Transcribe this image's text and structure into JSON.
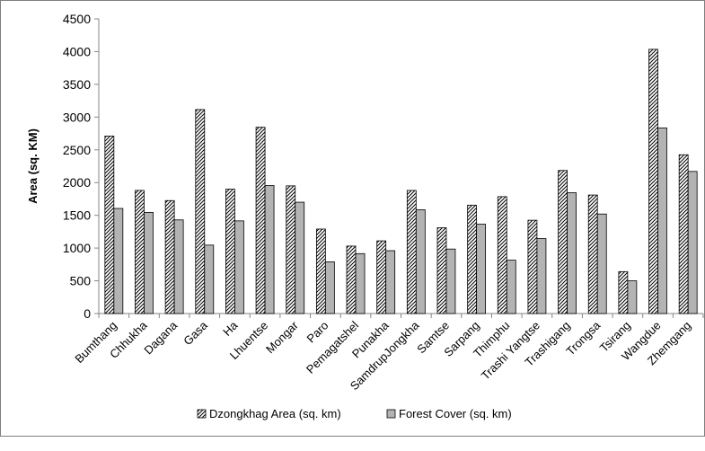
{
  "chart_data": {
    "type": "bar",
    "title": "",
    "xlabel": "",
    "ylabel": "Area (sq. KM)",
    "ylim": [
      0,
      4500
    ],
    "yticks": [
      0,
      500,
      1000,
      1500,
      2000,
      2500,
      3000,
      3500,
      4000,
      4500
    ],
    "grid": false,
    "legend_position": "bottom",
    "categories": [
      "Bumthang",
      "Chhukha",
      "Dagana",
      "Gasa",
      "Ha",
      "Lhuentse",
      "Mongar",
      "Paro",
      "Pemagatshel",
      "Punakha",
      "SamdrupJongkha",
      "Samtse",
      "Sarpang",
      "Thimphu",
      "Trashi Yangtse",
      "Trashigang",
      "Trongsa",
      "Tsirang",
      "Wangdue",
      "Zhemgang"
    ],
    "series": [
      {
        "name": "Dzongkhag Area (sq. km)",
        "pattern": "diagonal-hatch",
        "values": [
          2710,
          1880,
          1725,
          3115,
          1900,
          2845,
          1950,
          1290,
          1030,
          1110,
          1880,
          1310,
          1655,
          1785,
          1425,
          2185,
          1810,
          640,
          4035,
          2425
        ]
      },
      {
        "name": "Forest Cover (sq. km)",
        "color": "#b3b3b3",
        "values": [
          1605,
          1545,
          1430,
          1045,
          1415,
          1955,
          1700,
          790,
          915,
          960,
          1585,
          985,
          1365,
          815,
          1145,
          1845,
          1520,
          500,
          2835,
          2170
        ]
      }
    ]
  }
}
